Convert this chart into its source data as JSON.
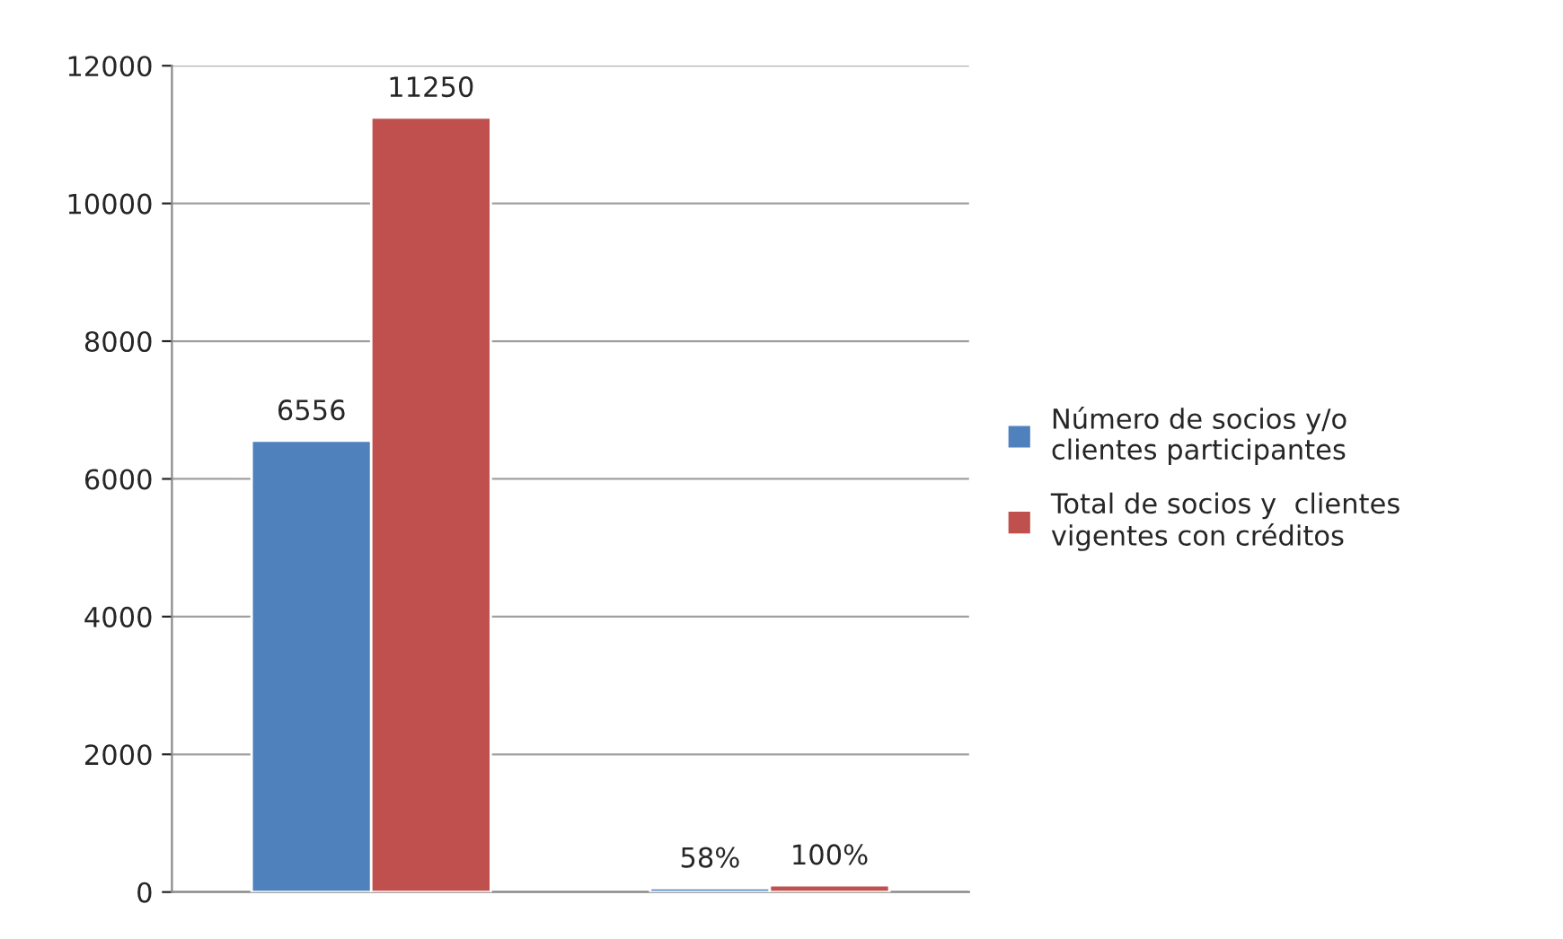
{
  "chart_data": {
    "type": "bar",
    "categories": [
      null,
      null
    ],
    "series": [
      {
        "name": "Número de socios y/o clientes participantes",
        "color": "#4f81bd",
        "values": [
          6556,
          58
        ],
        "value_labels": [
          "6556",
          "58%"
        ]
      },
      {
        "name": "Total de socios y  clientes vigentes con créditos",
        "color": "#c0504d",
        "values": [
          11250,
          100
        ],
        "value_labels": [
          "11250",
          "100%"
        ]
      }
    ],
    "ylim": [
      0,
      12000
    ],
    "yticks": [
      0,
      2000,
      4000,
      6000,
      8000,
      10000,
      12000
    ],
    "grid": "y",
    "legend": "right",
    "tick_labels": "y"
  }
}
